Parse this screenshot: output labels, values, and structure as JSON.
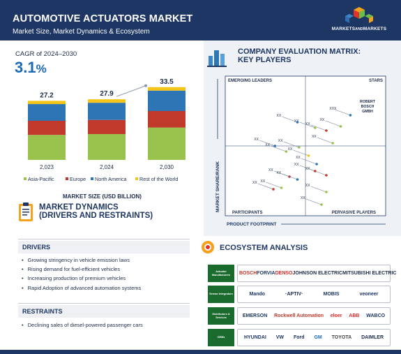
{
  "header": {
    "title": "AUTOMOTIVE ACTUATORS MARKET",
    "subtitle": "Market Size, Market Dynamics & Ecosystem",
    "logo_text_a": "MARKETS",
    "logo_text_and": "AND",
    "logo_text_b": "MARKETS",
    "logo_colors": [
      "#f4a11d",
      "#3a86c8",
      "#e4322b",
      "#6abf4b"
    ]
  },
  "cagr": {
    "label": "CAGR of 2024–2030",
    "value": "3.1",
    "unit": "%"
  },
  "chart_data": {
    "type": "bar",
    "stacked": true,
    "categories": [
      "2,023",
      "2,024",
      "2,030"
    ],
    "totals": [
      27.2,
      27.9,
      33.5
    ],
    "total_labels": [
      "27.2",
      "27.9",
      "33.5"
    ],
    "series": [
      {
        "name": "Asia-Pacific",
        "color": "#99c24d",
        "values": [
          11.5,
          11.9,
          14.9
        ]
      },
      {
        "name": "Europe",
        "color": "#c0392b",
        "values": [
          6.5,
          6.5,
          7.6
        ]
      },
      {
        "name": "North America",
        "color": "#2e75b6",
        "values": [
          7.7,
          7.9,
          9.4
        ]
      },
      {
        "name": "Rest of the World",
        "color": "#f5c518",
        "values": [
          1.5,
          1.6,
          1.6
        ]
      }
    ],
    "xlabel": "MARKET SIZE (USD BILLION)",
    "ylim": [
      0,
      36
    ],
    "grid": false,
    "legend": "bottom",
    "trend_arrow": {
      "from_category": "2,024",
      "to_category": "2,030"
    }
  },
  "dynamics": {
    "title_line1": "MARKET DYNAMICS",
    "title_line2": "(DRIVERS AND RESTRAINTS)",
    "drivers_label": "DRIVERS",
    "drivers": [
      "Growing stringency in vehicle emission laws",
      "Rising demand for fuel-efficient vehicles",
      "Increasing production of premium vehicles",
      "Rapid Adoption of advanced automation systems"
    ],
    "restraints_label": "RESTRAINTS",
    "restraints": [
      "Declining sales of diesel-powered passenger cars"
    ]
  },
  "matrix": {
    "title_line1": "COMPANY EVALUATION MATRIX:",
    "title_line2": "KEY PLAYERS",
    "q_emerging": "EMERGING LEADERS",
    "q_stars": "STARS",
    "q_participants": "PARTICIPANTS",
    "q_pervasive": "PERVASIVE PLAYERS",
    "x_axis": "PRODUCT FOOTPRINT",
    "y_axis": "MARKET SHARE/RANK",
    "named_player": [
      "ROBERT",
      "BOSCH",
      "GMBH"
    ],
    "points": [
      {
        "x": 0.78,
        "y": 0.28,
        "label": "XXX",
        "color": "#2e75b6"
      },
      {
        "x": 0.72,
        "y": 0.36,
        "label": "XX",
        "color": "#99c24d"
      },
      {
        "x": 0.63,
        "y": 0.39,
        "label": "XX",
        "color": "#c0392b"
      },
      {
        "x": 0.56,
        "y": 0.37,
        "label": "XX",
        "color": "#99c24d"
      },
      {
        "x": 0.45,
        "y": 0.33,
        "label": "XX",
        "color": "#2e75b6"
      },
      {
        "x": 0.67,
        "y": 0.48,
        "label": "XX",
        "color": "#99c24d"
      },
      {
        "x": 0.46,
        "y": 0.51,
        "label": "XX",
        "color": "#99c24d"
      },
      {
        "x": 0.38,
        "y": 0.54,
        "label": "XX",
        "color": "#99c24d"
      },
      {
        "x": 0.31,
        "y": 0.5,
        "label": "XX",
        "color": "#2e75b6"
      },
      {
        "x": 0.52,
        "y": 0.57,
        "label": "XX",
        "color": "#f5c518"
      },
      {
        "x": 0.57,
        "y": 0.63,
        "label": "XX",
        "color": "#2e75b6"
      },
      {
        "x": 0.63,
        "y": 0.71,
        "label": "XX",
        "color": "#c0392b"
      },
      {
        "x": 0.56,
        "y": 0.68,
        "label": "XX",
        "color": "#c0392b"
      },
      {
        "x": 0.4,
        "y": 0.72,
        "label": "XX",
        "color": "#c0392b"
      },
      {
        "x": 0.45,
        "y": 0.74,
        "label": "XX",
        "color": "#2e75b6"
      },
      {
        "x": 0.35,
        "y": 0.8,
        "label": "XX",
        "color": "#99c24d"
      },
      {
        "x": 0.3,
        "y": 0.81,
        "label": "XX",
        "color": "#c0392b"
      },
      {
        "x": 0.63,
        "y": 0.83,
        "label": "XX",
        "color": "#99c24d"
      },
      {
        "x": 0.6,
        "y": 0.92,
        "label": "XX",
        "color": "#99c24d"
      }
    ]
  },
  "ecosystem": {
    "title": "ECOSYSTEM ANALYSIS",
    "rows": [
      {
        "category": "Actuator Manufacturers",
        "logos": [
          {
            "text": "BOSCH",
            "color": "#c0392b"
          },
          {
            "text": "FORVIA",
            "color": "#1d3664"
          },
          {
            "text": "DENSO",
            "color": "#d62b2b"
          },
          {
            "text": "JOHNSON ELECTRIC",
            "color": "#1c2b4a"
          },
          {
            "text": "MITSUBISHI ELECTRIC",
            "color": "#1c2b4a"
          }
        ]
      },
      {
        "category": "Sensor Integrators",
        "logos": [
          {
            "text": "Mando",
            "color": "#1d3664"
          },
          {
            "text": "·APTIV·",
            "color": "#1c2b4a"
          },
          {
            "text": "MOBIS",
            "color": "#1d3664"
          },
          {
            "text": "veoneer",
            "color": "#1d3664"
          }
        ]
      },
      {
        "category": "Distributors & Services",
        "logos": [
          {
            "text": "EMERSON",
            "color": "#1d3664"
          },
          {
            "text": "Rockwell Automation",
            "color": "#c0392b"
          },
          {
            "text": "eloer",
            "color": "#d62b2b"
          },
          {
            "text": "ABB",
            "color": "#d62b2b"
          },
          {
            "text": "WABCO",
            "color": "#1d3664"
          }
        ]
      },
      {
        "category": "OEMs",
        "logos": [
          {
            "text": "HYUNDAI",
            "color": "#1d3664"
          },
          {
            "text": "VW",
            "color": "#1d3664"
          },
          {
            "text": "Ford",
            "color": "#1d3664"
          },
          {
            "text": "GM",
            "color": "#1d6bbf"
          },
          {
            "text": "TOYOTA",
            "color": "#444444"
          },
          {
            "text": "DAIMLER",
            "color": "#1c2b4a"
          }
        ]
      }
    ]
  }
}
